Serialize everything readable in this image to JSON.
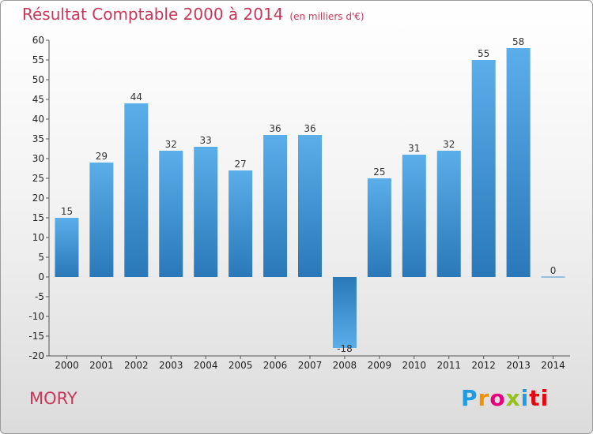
{
  "header": {
    "title": "Résultat Comptable 2000 à 2014",
    "unit": "(en milliers d'€)"
  },
  "footer": {
    "town": "MORY",
    "brand_letters": [
      "P",
      "r",
      "o",
      "x",
      "i",
      "ti"
    ]
  },
  "chart_data": {
    "type": "bar",
    "title": "Résultat Comptable 2000 à 2014",
    "ylabel": "(en milliers d'€)",
    "xlabel": "",
    "categories": [
      "2000",
      "2001",
      "2002",
      "2003",
      "2004",
      "2005",
      "2006",
      "2007",
      "2008",
      "2009",
      "2010",
      "2011",
      "2012",
      "2013",
      "2014"
    ],
    "values": [
      15,
      29,
      44,
      32,
      33,
      27,
      36,
      36,
      -18,
      25,
      31,
      32,
      55,
      58,
      0
    ],
    "ylim": [
      -20,
      60
    ],
    "yticks": [
      60,
      55,
      50,
      45,
      40,
      35,
      30,
      25,
      20,
      15,
      10,
      5,
      0,
      -5,
      -10,
      -15,
      -20
    ],
    "grid": false,
    "colors": {
      "bar_light": "#5aaeea",
      "bar_dark": "#2a78b8"
    }
  }
}
